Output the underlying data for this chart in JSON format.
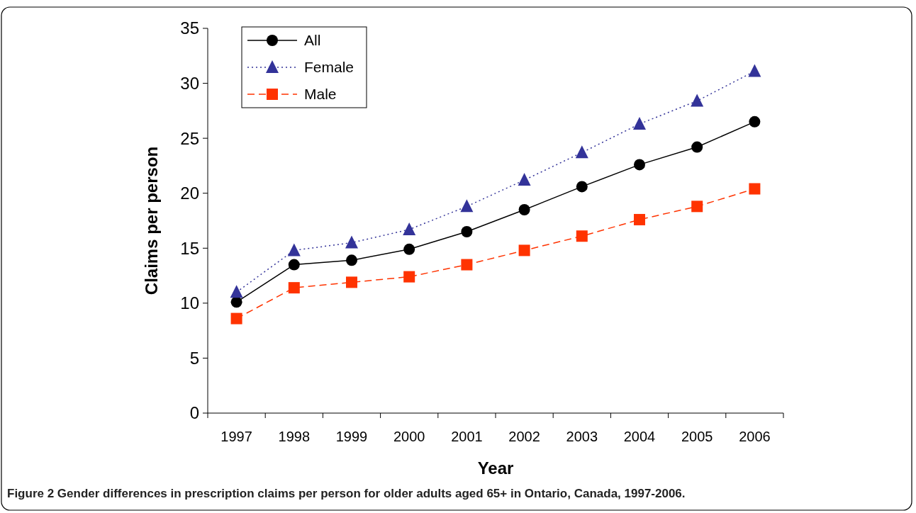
{
  "chart_data": {
    "type": "line",
    "xlabel": "Year",
    "ylabel": "Claims per person",
    "annotations": [
      "Figure 2 Gender differences in prescription claims per person for older adults aged 65+ in Ontario, Canada, 1997-2006."
    ],
    "categories": [
      "1997",
      "1998",
      "1999",
      "2000",
      "2001",
      "2002",
      "2003",
      "2004",
      "2005",
      "2006"
    ],
    "ylim": [
      0,
      35
    ],
    "yticks": [
      0,
      5,
      10,
      15,
      20,
      25,
      30,
      35
    ],
    "grid": false,
    "legend": "top left",
    "series": [
      {
        "name": "All",
        "color": "#000000",
        "marker": "circle",
        "line_style": "solid",
        "values": [
          10.1,
          13.5,
          13.9,
          14.9,
          16.5,
          18.5,
          20.6,
          22.6,
          24.2,
          26.5
        ]
      },
      {
        "name": "Female",
        "color": "#333399",
        "marker": "triangle",
        "line_style": "dotted",
        "values": [
          11.0,
          14.8,
          15.5,
          16.7,
          18.8,
          21.2,
          23.7,
          26.3,
          28.4,
          31.1
        ]
      },
      {
        "name": "Male",
        "color": "#ff3300",
        "marker": "square",
        "line_style": "dashed",
        "values": [
          8.6,
          11.4,
          11.9,
          12.4,
          13.5,
          14.8,
          16.1,
          17.6,
          18.8,
          20.4
        ]
      }
    ]
  }
}
